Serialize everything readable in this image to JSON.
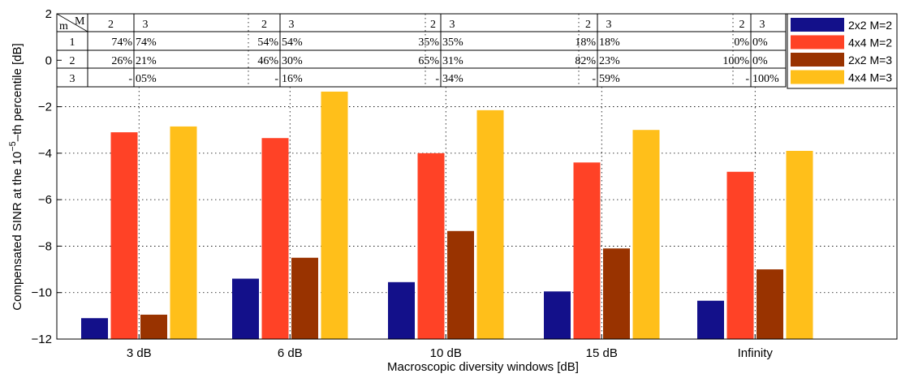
{
  "chart_data": {
    "type": "bar",
    "title": "",
    "xlabel": "Macroscopic diversity windows [dB]",
    "ylabel": {
      "before": "Compensated SINR at the 10",
      "superscript": "−5",
      "after": "–th percentile [dB]"
    },
    "categories": [
      "3 dB",
      "6 dB",
      "10 dB",
      "15 dB",
      "Infinity"
    ],
    "ylim": [
      -12,
      2
    ],
    "yticks": [
      "−12",
      "−10",
      "−8",
      "−6",
      "−4",
      "−2",
      "0",
      "2"
    ],
    "grid": true,
    "legend_position": "top-right",
    "series": [
      {
        "name": "2x2 M=2",
        "color": "#13108a",
        "values": [
          -11.1,
          -9.4,
          -9.55,
          -9.95,
          -10.35
        ]
      },
      {
        "name": "4x4 M=2",
        "color": "#ff4226",
        "values": [
          -3.1,
          -3.35,
          -4.0,
          -4.4,
          -4.8
        ]
      },
      {
        "name": "2x2 M=3",
        "color": "#993300",
        "values": [
          -10.95,
          -8.5,
          -7.35,
          -8.1,
          -9.0
        ]
      },
      {
        "name": "4x4 M=3",
        "color": "#ffbf1a",
        "values": [
          -2.85,
          -1.35,
          -2.15,
          -3.0,
          -3.9
        ]
      }
    ]
  },
  "table": {
    "corner_m": "m",
    "corner_M": "M",
    "header": [
      "2",
      "3",
      "2",
      "3",
      "2",
      "3",
      "2",
      "3",
      "2",
      "3"
    ],
    "rows": [
      {
        "m": "1",
        "cells": [
          "74%",
          "74%",
          "54%",
          "54%",
          "35%",
          "35%",
          "18%",
          "18%",
          "0%",
          "0%"
        ]
      },
      {
        "m": "2",
        "cells": [
          "26%",
          "21%",
          "46%",
          "30%",
          "65%",
          "31%",
          "82%",
          "23%",
          "100%",
          "0%"
        ]
      },
      {
        "m": "3",
        "cells": [
          "-",
          "05%",
          "-",
          "16%",
          "-",
          "34%",
          "-",
          "59%",
          "-",
          "100%"
        ]
      }
    ]
  }
}
